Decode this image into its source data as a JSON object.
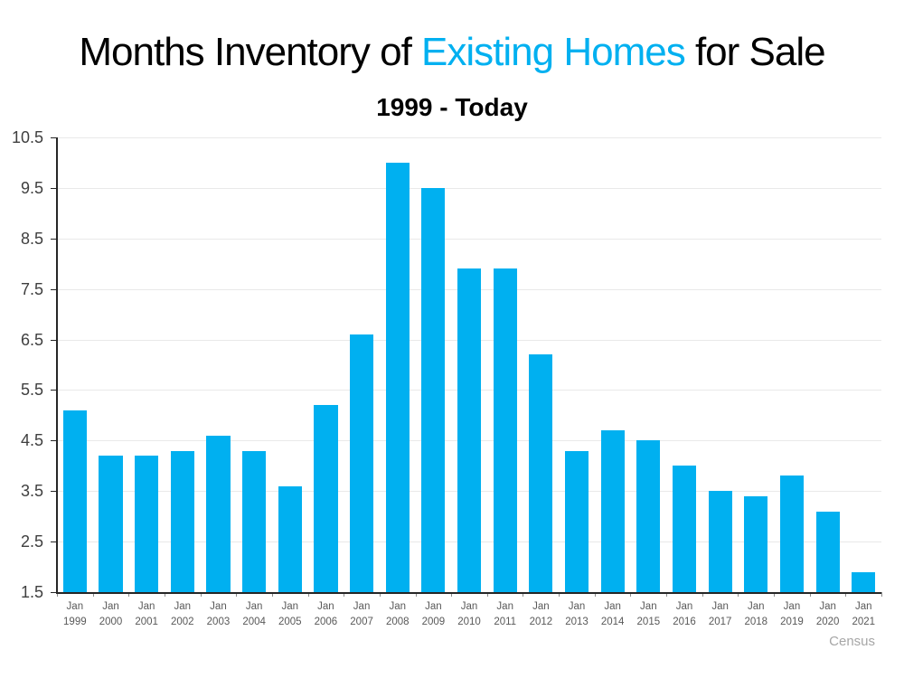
{
  "title": {
    "prefix": "Months Inventory of ",
    "highlight": "Existing Homes",
    "suffix": " for Sale"
  },
  "subtitle": "1999 - Today",
  "source_label": "Census",
  "colors": {
    "bar": "#00B0F0",
    "title_highlight": "#00B0F0",
    "gridline": "#E9E9E9",
    "axis": "#262626",
    "y_tick_label": "#3F3F3F",
    "x_tick_label": "#595959",
    "source_text": "#A6A6A6"
  },
  "chart_data": {
    "type": "bar",
    "title": "Months Inventory of Existing Homes for Sale",
    "subtitle": "1999 - Today",
    "categories": [
      "Jan 1999",
      "Jan 2000",
      "Jan 2001",
      "Jan 2002",
      "Jan 2003",
      "Jan 2004",
      "Jan 2005",
      "Jan 2006",
      "Jan 2007",
      "Jan 2008",
      "Jan 2009",
      "Jan 2010",
      "Jan 2011",
      "Jan 2012",
      "Jan 2013",
      "Jan 2014",
      "Jan 2015",
      "Jan 2016",
      "Jan 2017",
      "Jan 2018",
      "Jan 2019",
      "Jan 2020",
      "Jan 2021"
    ],
    "values": [
      5.1,
      4.2,
      4.2,
      4.3,
      4.6,
      4.3,
      3.6,
      5.2,
      6.6,
      10.0,
      9.5,
      7.9,
      7.9,
      6.2,
      4.3,
      4.7,
      4.5,
      4.0,
      3.5,
      3.4,
      3.8,
      3.1,
      1.9
    ],
    "xlabel": "",
    "ylabel": "",
    "ylim": [
      1.5,
      10.5
    ],
    "yticks": [
      10.5,
      9.5,
      8.5,
      7.5,
      6.5,
      5.5,
      4.5,
      3.5,
      2.5,
      1.5
    ],
    "grid": true,
    "legend": false,
    "bar_color": "#00B0F0"
  }
}
